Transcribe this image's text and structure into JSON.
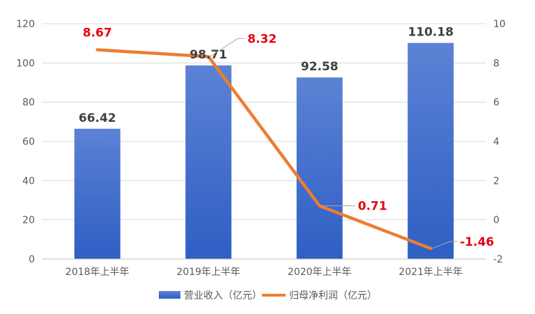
{
  "chart_data": {
    "type": "bar+line",
    "categories": [
      "2018年上半年",
      "2019年上半年",
      "2020年上半年",
      "2021年上半年"
    ],
    "series": [
      {
        "name": "营业收入（亿元）",
        "type": "bar",
        "axis": "left",
        "values": [
          66.42,
          98.71,
          92.58,
          110.18
        ],
        "labels": [
          "66.42",
          "98.71",
          "92.58",
          "110.18"
        ],
        "color": "#3f6fcf"
      },
      {
        "name": "归母净利润（亿元）",
        "type": "line",
        "axis": "right",
        "values": [
          8.67,
          8.32,
          0.71,
          -1.46
        ],
        "labels": [
          "8.67",
          "8.32",
          "0.71",
          "-1.46"
        ],
        "color": "#ed7d31",
        "label_color": "#e60012"
      }
    ],
    "y_left": {
      "min": 0,
      "max": 120,
      "ticks": [
        "0",
        "20",
        "40",
        "60",
        "80",
        "100",
        "120"
      ]
    },
    "y_right": {
      "min": -2,
      "max": 10,
      "ticks": [
        "-2",
        "0",
        "2",
        "4",
        "6",
        "8",
        "10"
      ]
    },
    "grid": true,
    "legend_position": "bottom"
  }
}
